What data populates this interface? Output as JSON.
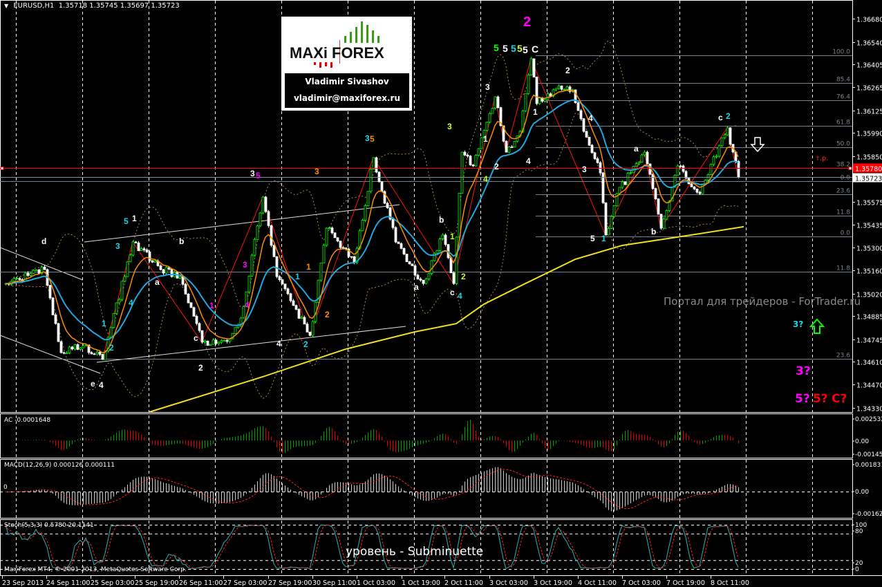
{
  "header": {
    "symbol": "EURUSD,H1",
    "open": "1.35718",
    "high": "1.35745",
    "low": "1.35697",
    "close": "1.35723"
  },
  "logo": {
    "brand_left": "MAXi",
    "brand_right": "FOREX",
    "author": "Vladimir Sivashov",
    "email": "vladimir@maxiforex.ru"
  },
  "watermark": "Портал для трейдеров - ForTrader.ru",
  "wave_level_caption": "уровень - Subminuette",
  "copyright": "MaxiForex MT4, © 2001-2013, MetaQuotes Software Corp.",
  "target_label": "т.р.",
  "forecast_labels": [
    {
      "text": "3?",
      "color": "#19d3e6"
    },
    {
      "text": "3?",
      "color": "#ff00ff"
    },
    {
      "text": "5?",
      "color": "#ff00ff"
    },
    {
      "text": "5?",
      "color": "#ff0000"
    },
    {
      "text": "C?",
      "color": "#ff0000"
    }
  ],
  "colors": {
    "up_candle": "#00ff00",
    "down_candle": "#ffffff",
    "ma_fast": "#ff8c00",
    "ma_slow": "#1fa8e0",
    "ma_long": "#f0e020",
    "bands": "#b08850",
    "zigzag": "#ff1010",
    "fib": "#7a8490",
    "stoch_main": "#20b8b8",
    "signal": "#ff2020",
    "ac_up": "#00a000",
    "ac_down": "#e00000"
  },
  "icons": {
    "target_arrow": "down-arrow-outline-white",
    "forecast_arrow": "up-arrow-outline-green"
  },
  "chart_data": {
    "type": "candlestick",
    "symbol": "EURUSD",
    "timeframe": "H1",
    "ylim": [
      1.3433,
      1.3668
    ],
    "price_axis_labels": [
      "1.36680",
      "1.36540",
      "1.36405",
      "1.36265",
      "1.36125",
      "1.35990",
      "1.35850",
      "1.35575",
      "1.35435",
      "1.35300",
      "1.35160",
      "1.35020",
      "1.34885",
      "1.34745",
      "1.34610",
      "1.34470",
      "1.34330"
    ],
    "time_axis_labels": [
      "23 Sep 2013",
      "24 Sep 11:00",
      "25 Sep 03:00",
      "25 Sep 19:00",
      "26 Sep 11:00",
      "27 Sep 03:00",
      "27 Sep 19:00",
      "30 Sep 11:00",
      "1 Oct 03:00",
      "1 Oct 19:00",
      "2 Oct 11:00",
      "3 Oct 03:00",
      "3 Oct 19:00",
      "4 Oct 11:00",
      "7 Oct 03:00",
      "7 Oct 19:00",
      "8 Oct 11:00"
    ],
    "price_path": [
      [
        "23 Sep 20:00",
        1.35081
      ],
      [
        "24 Sep 10:00",
        1.35165
      ],
      [
        "24 Sep 16:00",
        1.34664
      ],
      [
        "25 Sep 00:00",
        1.34706
      ],
      [
        "25 Sep 07:00",
        1.34622
      ],
      [
        "25 Sep 18:00",
        1.35332
      ],
      [
        "26 Sep 04:00",
        1.35165
      ],
      [
        "26 Sep 11:00",
        1.35123
      ],
      [
        "26 Sep 19:00",
        1.34727
      ],
      [
        "27 Sep 05:00",
        1.34747
      ],
      [
        "27 Sep 09:00",
        1.34873
      ],
      [
        "27 Sep 17:00",
        1.35603
      ],
      [
        "27 Sep 22:00",
        1.35123
      ],
      [
        "30 Sep 10:00",
        1.34768
      ],
      [
        "30 Sep 16:00",
        1.35415
      ],
      [
        "1 Oct 02:00",
        1.35207
      ],
      [
        "1 Oct 09:00",
        1.35841
      ],
      [
        "1 Oct 17:00",
        1.35332
      ],
      [
        "2 Oct 03:00",
        1.35081
      ],
      [
        "2 Oct 10:00",
        1.35374
      ],
      [
        "2 Oct 14:00",
        1.35081
      ],
      [
        "2 Oct 17:00",
        1.35874
      ],
      [
        "2 Oct 21:00",
        1.35791
      ],
      [
        "3 Oct 05:00",
        1.36208
      ],
      [
        "3 Oct 09:00",
        1.35874
      ],
      [
        "3 Oct 14:00",
        1.36
      ],
      [
        "3 Oct 18:00",
        1.36438
      ],
      [
        "3 Oct 20:00",
        1.36167
      ],
      [
        "4 Oct 02:00",
        1.3625
      ],
      [
        "4 Oct 09:00",
        1.3625
      ],
      [
        "4 Oct 11:00",
        1.36125
      ],
      [
        "4 Oct 15:00",
        1.35916
      ],
      [
        "4 Oct 19:00",
        1.35749
      ],
      [
        "4 Oct 21:00",
        1.35374
      ],
      [
        "7 Oct 01:00",
        1.35624
      ],
      [
        "7 Oct 11:00",
        1.35874
      ],
      [
        "7 Oct 17:00",
        1.35415
      ],
      [
        "7 Oct 23:00",
        1.35791
      ],
      [
        "8 Oct 07:00",
        1.35624
      ],
      [
        "8 Oct 17:00",
        1.36021
      ],
      [
        "8 Oct 21:00",
        1.35723
      ]
    ],
    "long_ma": [
      [
        "26 Sep 00:00",
        1.34305
      ],
      [
        "27 Sep 17:00",
        1.34518
      ],
      [
        "30 Sep 23:00",
        1.34685
      ],
      [
        "2 Oct 00:00",
        1.34789
      ],
      [
        "2 Oct 15:00",
        1.34839
      ],
      [
        "3 Oct 01:00",
        1.34956
      ],
      [
        "3 Oct 16:00",
        1.35081
      ],
      [
        "4 Oct 10:00",
        1.35227
      ],
      [
        "7 Oct 03:00",
        1.35311
      ],
      [
        "8 Oct 04:00",
        1.35374
      ],
      [
        "8 Oct 23:00",
        1.35424
      ]
    ],
    "horizontal_lines": {
      "target": {
        "price": "1.35780"
      },
      "bid": {
        "price": "1.35723"
      }
    },
    "fib_levels": [
      {
        "label": "100.0",
        "price": 1.36459,
        "span": "right"
      },
      {
        "label": "85.4",
        "price": 1.36292,
        "span": "right"
      },
      {
        "label": "76.4",
        "price": 1.36188,
        "span": "right"
      },
      {
        "label": "61.8",
        "price": 1.36033,
        "span": "right"
      },
      {
        "label": "50.0",
        "price": 1.35904,
        "span": "right"
      },
      {
        "label": "38.2",
        "price": 1.3578,
        "span": "full"
      },
      {
        "label": "0.0",
        "price": 1.357,
        "span": "full"
      },
      {
        "label": "23.6",
        "price": 1.3562,
        "span": "right"
      },
      {
        "label": "11.8",
        "price": 1.3549,
        "span": "right"
      },
      {
        "label": "0.0",
        "price": 1.35365,
        "span": "right"
      },
      {
        "label": "11.8",
        "price": 1.35152,
        "span": "full"
      },
      {
        "label": "23.6",
        "price": 1.34626,
        "span": "full"
      }
    ],
    "indicators": {
      "ac": {
        "label": "AC -0.0001648",
        "scale": [
          "0.0025321",
          "0.00",
          "-0.001455"
        ],
        "range": [
          -0.001455,
          0.0025321
        ]
      },
      "macd": {
        "label": "MACD(12,26,9) 0.000126 0.000111",
        "zero_label": "0",
        "scale": [
          "0.001831",
          "0.00",
          "-0.001627"
        ],
        "range": [
          -0.001627,
          0.001831
        ]
      },
      "stoch": {
        "label": "Stoch(5,3,3) 0.5780 20.1141",
        "scale": [
          "100",
          "80",
          "20",
          "0"
        ]
      }
    }
  },
  "wave_labels": [
    {
      "text": "d",
      "color": "#ffffff"
    },
    {
      "text": "e",
      "color": "#ffffff"
    },
    {
      "text": "4",
      "color": "#ffffff"
    },
    {
      "text": "5",
      "color": "#19d3e6"
    },
    {
      "text": "1",
      "color": "#ffffff"
    },
    {
      "text": "3",
      "color": "#19d3e6"
    },
    {
      "text": "1",
      "color": "#19d3e6"
    },
    {
      "text": "4",
      "color": "#19d3e6"
    },
    {
      "text": "2",
      "color": "#19d3e6"
    },
    {
      "text": "b",
      "color": "#ffffff"
    },
    {
      "text": "a",
      "color": "#ffffff"
    },
    {
      "text": "c",
      "color": "#ffffff"
    },
    {
      "text": "2",
      "color": "#ffffff"
    },
    {
      "text": "1",
      "color": "#ff00ff"
    },
    {
      "text": "3",
      "color": "#ff00ff"
    },
    {
      "text": "4",
      "color": "#ff00ff"
    },
    {
      "text": "3",
      "color": "#ffffff"
    },
    {
      "text": "5",
      "color": "#ff00ff"
    },
    {
      "text": "4",
      "color": "#ffffff"
    },
    {
      "text": "2",
      "color": "#19d3e6"
    },
    {
      "text": "1",
      "color": "#19d3e6"
    },
    {
      "text": "1",
      "color": "#ff8c00"
    },
    {
      "text": "3",
      "color": "#ff8c00"
    },
    {
      "text": "2",
      "color": "#ff8c00"
    },
    {
      "text": "3",
      "color": "#19d3e6"
    },
    {
      "text": "5",
      "color": "#ff8c00"
    },
    {
      "text": "b",
      "color": "#ffffff"
    },
    {
      "text": "a",
      "color": "#ffffff"
    },
    {
      "text": "c",
      "color": "#ffffff"
    },
    {
      "text": "4",
      "color": "#19d3e6"
    },
    {
      "text": "1",
      "color": "#c8ff30"
    },
    {
      "text": "2",
      "color": "#c8ff30"
    },
    {
      "text": "3",
      "color": "#c8ff30"
    },
    {
      "text": "1",
      "color": "#ffffff"
    },
    {
      "text": "2",
      "color": "#ffffff"
    },
    {
      "text": "4",
      "color": "#c8ff30"
    },
    {
      "text": "3",
      "color": "#ffffff"
    },
    {
      "text": "4",
      "color": "#ffffff"
    },
    {
      "text": "5",
      "color": "#00ff00"
    },
    {
      "text": "5",
      "color": "#ffffff"
    },
    {
      "text": "5",
      "color": "#19d3e6"
    },
    {
      "text": "5",
      "color": "#c8ff30"
    },
    {
      "text": "5",
      "color": "#ffffff"
    },
    {
      "text": "C",
      "color": "#ffffff"
    },
    {
      "text": "2",
      "color": "#ff00ff"
    },
    {
      "text": "1",
      "color": "#ffffff"
    },
    {
      "text": "2",
      "color": "#ffffff"
    },
    {
      "text": "4",
      "color": "#ffffff"
    },
    {
      "text": "3",
      "color": "#ffffff"
    },
    {
      "text": "5",
      "color": "#ffffff"
    },
    {
      "text": "1",
      "color": "#19d3e6"
    },
    {
      "text": "a",
      "color": "#ffffff"
    },
    {
      "text": "b",
      "color": "#ffffff"
    },
    {
      "text": "c",
      "color": "#ffffff"
    },
    {
      "text": "2",
      "color": "#19d3e6"
    }
  ]
}
